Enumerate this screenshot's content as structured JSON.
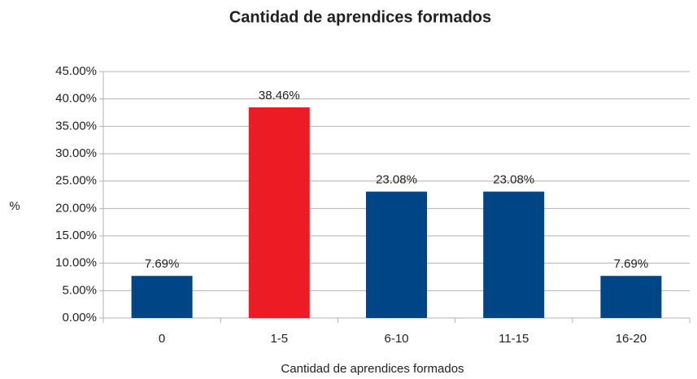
{
  "chart_data": {
    "type": "bar",
    "title": "Cantidad de aprendices formados",
    "x_label": "Cantidad de aprendices formados",
    "y_label": "%",
    "categories": [
      "0",
      "1-5",
      "6-10",
      "11-15",
      "16-20"
    ],
    "values": [
      7.69,
      38.46,
      23.08,
      23.08,
      7.69
    ],
    "value_labels": [
      "7.69%",
      "38.46%",
      "23.08%",
      "23.08%",
      "7.69%"
    ],
    "colors": [
      "#004586",
      "#ed1c24",
      "#004586",
      "#004586",
      "#004586"
    ],
    "ylim": [
      0,
      45
    ],
    "yticks": [
      {
        "value": 0,
        "label": "0.00%"
      },
      {
        "value": 5,
        "label": "5.00%"
      },
      {
        "value": 10,
        "label": "10.00%"
      },
      {
        "value": 15,
        "label": "15.00%"
      },
      {
        "value": 20,
        "label": "20.00%"
      },
      {
        "value": 25,
        "label": "25.00%"
      },
      {
        "value": 30,
        "label": "30.00%"
      },
      {
        "value": 35,
        "label": "35.00%"
      },
      {
        "value": 40,
        "label": "40.00%"
      },
      {
        "value": 45,
        "label": "45.00%"
      }
    ],
    "grid": true
  }
}
